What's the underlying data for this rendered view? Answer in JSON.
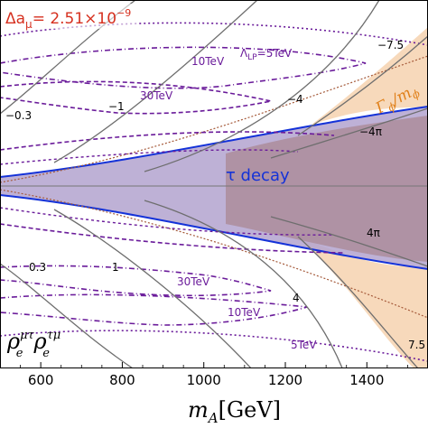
{
  "chart_data": {
    "type": "line",
    "xlabel_var": "m",
    "xlabel_sub": "A",
    "xlabel_unit": "[GeV]",
    "x_ticks": [
      "600",
      "800",
      "1000",
      "1200",
      "1400"
    ],
    "xlim": [
      500,
      1550
    ],
    "delta_a": {
      "prefix": "Δa",
      "sub": "μ",
      "value": "= 2.51×10",
      "exp": "−9"
    },
    "couplings": {
      "first": "ρ",
      "first_sup": "μτ",
      "first_sub": "e",
      "second": "ρ",
      "second_sup": "τμ",
      "second_sub": "e"
    },
    "tau_decay_label": "τ decay",
    "width_label": "Γ",
    "width_sub": "ϕ",
    "width_tail": "/m",
    "width_tail_sub": "ϕ",
    "lambda_lp": {
      "symbol": "Λ",
      "sub": "LP",
      "eq_value": "=5TeV"
    },
    "lp_labels": [
      "10TeV",
      "30TeV",
      "30TeV",
      "10TeV",
      "5TeV"
    ],
    "contour_labels": [
      "−0.3",
      "−1",
      "−4",
      "−4π",
      "−7.5",
      "0.3",
      "1",
      "4",
      "4π",
      "7.5"
    ],
    "colors": {
      "tau_band_fill": "#b3a3cf",
      "tau_band_edge": "#1432d8",
      "peach_fill": "#f7d9bb",
      "mauve_fill": "#ad8f9f",
      "gray_contour": "#6e6e6e",
      "lp_contour": "#6a1b9a",
      "delta_a_text": "#d6301f"
    }
  }
}
